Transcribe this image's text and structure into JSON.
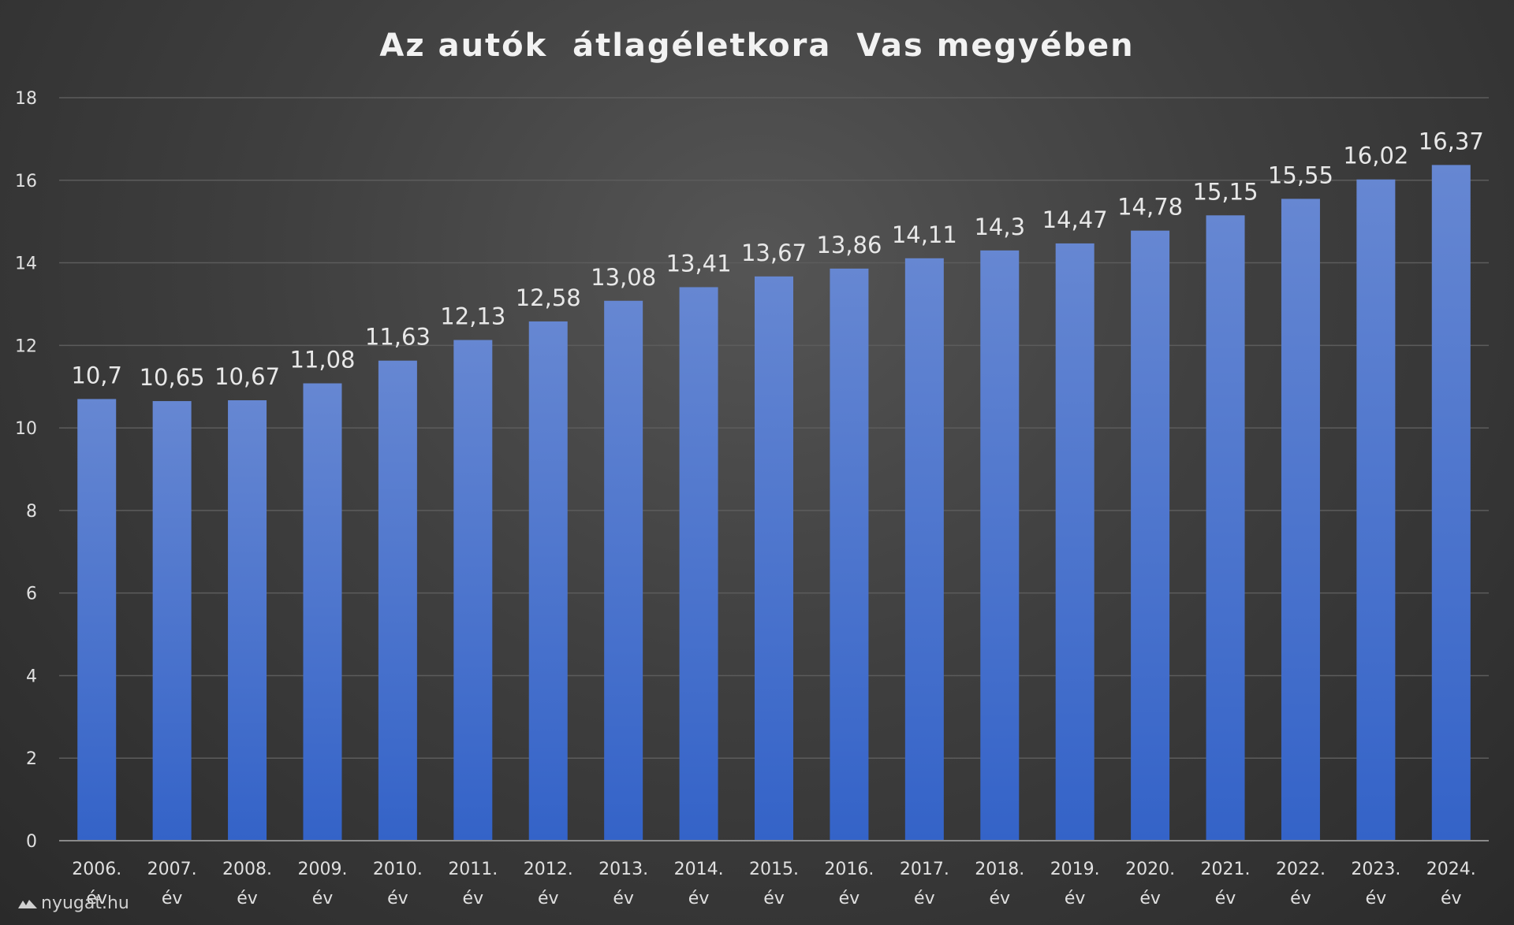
{
  "watermark": "nyugat.hu",
  "colors": {
    "bar_top": "#6687d2",
    "bar_bottom": "#3463c8"
  },
  "chart_data": {
    "type": "bar",
    "title": "Az autók  átlagéletkora  Vas megyében",
    "xlabel": "",
    "ylabel": "",
    "ylim": [
      0,
      18
    ],
    "yticks": [
      "0",
      "2",
      "4",
      "6",
      "8",
      "10",
      "12",
      "14",
      "16",
      "18"
    ],
    "grid": true,
    "legend": "none",
    "categories": [
      [
        "2006.",
        "év"
      ],
      [
        "2007.",
        "év"
      ],
      [
        "2008.",
        "év"
      ],
      [
        "2009.",
        "év"
      ],
      [
        "2010.",
        "év"
      ],
      [
        "2011.",
        "év"
      ],
      [
        "2012.",
        "év"
      ],
      [
        "2013.",
        "év"
      ],
      [
        "2014.",
        "év"
      ],
      [
        "2015.",
        "év"
      ],
      [
        "2016.",
        "év"
      ],
      [
        "2017.",
        "év"
      ],
      [
        "2018.",
        "év"
      ],
      [
        "2019.",
        "év"
      ],
      [
        "2020.",
        "év"
      ],
      [
        "2021.",
        "év"
      ],
      [
        "2022.",
        "év"
      ],
      [
        "2023.",
        "év"
      ],
      [
        "2024.",
        "év"
      ]
    ],
    "values": [
      10.7,
      10.65,
      10.67,
      11.08,
      11.63,
      12.13,
      12.58,
      13.08,
      13.41,
      13.67,
      13.86,
      14.11,
      14.3,
      14.47,
      14.78,
      15.15,
      15.55,
      16.02,
      16.37
    ],
    "data_labels": [
      "10,7",
      "10,65",
      "10,67",
      "11,08",
      "11,63",
      "12,13",
      "12,58",
      "13,08",
      "13,41",
      "13,67",
      "13,86",
      "14,11",
      "14,3",
      "14,47",
      "14,78",
      "15,15",
      "15,55",
      "16,02",
      "16,37"
    ]
  }
}
